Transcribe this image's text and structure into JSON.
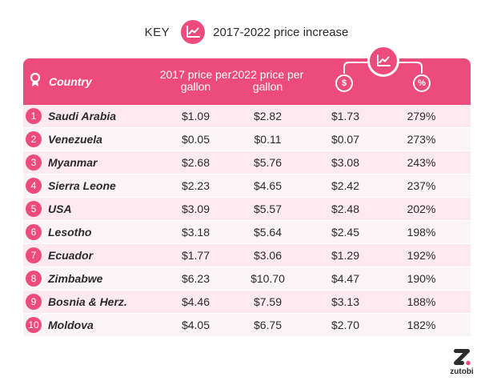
{
  "key": {
    "word": "KEY",
    "icon": "trend-chart-icon",
    "label": "2017-2022 price increase"
  },
  "colors": {
    "accent": "#ee4b7d",
    "row_odd": "#fdeaf0",
    "row_even": "#fbf4f6",
    "text": "#2b2b2b"
  },
  "chart_data": {
    "type": "table",
    "columns": {
      "country": "Country",
      "price_2017": "2017 price per gallon",
      "price_2022": "2022 price per gallon",
      "increase_icon": "$",
      "percent_icon": "%",
      "group_icon": "trend-chart-icon"
    },
    "rows": [
      {
        "rank": "1",
        "country": "Saudi Arabia",
        "p2017": "$1.09",
        "p2022": "$2.82",
        "increase": "$1.73",
        "percent": "279%"
      },
      {
        "rank": "2",
        "country": "Venezuela",
        "p2017": "$0.05",
        "p2022": "$0.11",
        "increase": "$0.07",
        "percent": "273%"
      },
      {
        "rank": "3",
        "country": "Myanmar",
        "p2017": "$2.68",
        "p2022": "$5.76",
        "increase": "$3.08",
        "percent": "243%"
      },
      {
        "rank": "4",
        "country": "Sierra Leone",
        "p2017": "$2.23",
        "p2022": "$4.65",
        "increase": "$2.42",
        "percent": "237%"
      },
      {
        "rank": "5",
        "country": "USA",
        "p2017": "$3.09",
        "p2022": "$5.57",
        "increase": "$2.48",
        "percent": "202%"
      },
      {
        "rank": "6",
        "country": "Lesotho",
        "p2017": "$3.18",
        "p2022": "$5.64",
        "increase": "$2.45",
        "percent": "198%"
      },
      {
        "rank": "7",
        "country": "Ecuador",
        "p2017": "$1.77",
        "p2022": "$3.06",
        "increase": "$1.29",
        "percent": "192%"
      },
      {
        "rank": "8",
        "country": "Zimbabwe",
        "p2017": "$6.23",
        "p2022": "$10.70",
        "increase": "$4.47",
        "percent": "190%"
      },
      {
        "rank": "9",
        "country": "Bosnia & Herz.",
        "p2017": "$4.46",
        "p2022": "$7.59",
        "increase": "$3.13",
        "percent": "188%"
      },
      {
        "rank": "10",
        "country": "Moldova",
        "p2017": "$4.05",
        "p2022": "$6.75",
        "increase": "$2.70",
        "percent": "182%"
      }
    ]
  },
  "logo": {
    "mark": "Z",
    "text": "zutobi"
  }
}
